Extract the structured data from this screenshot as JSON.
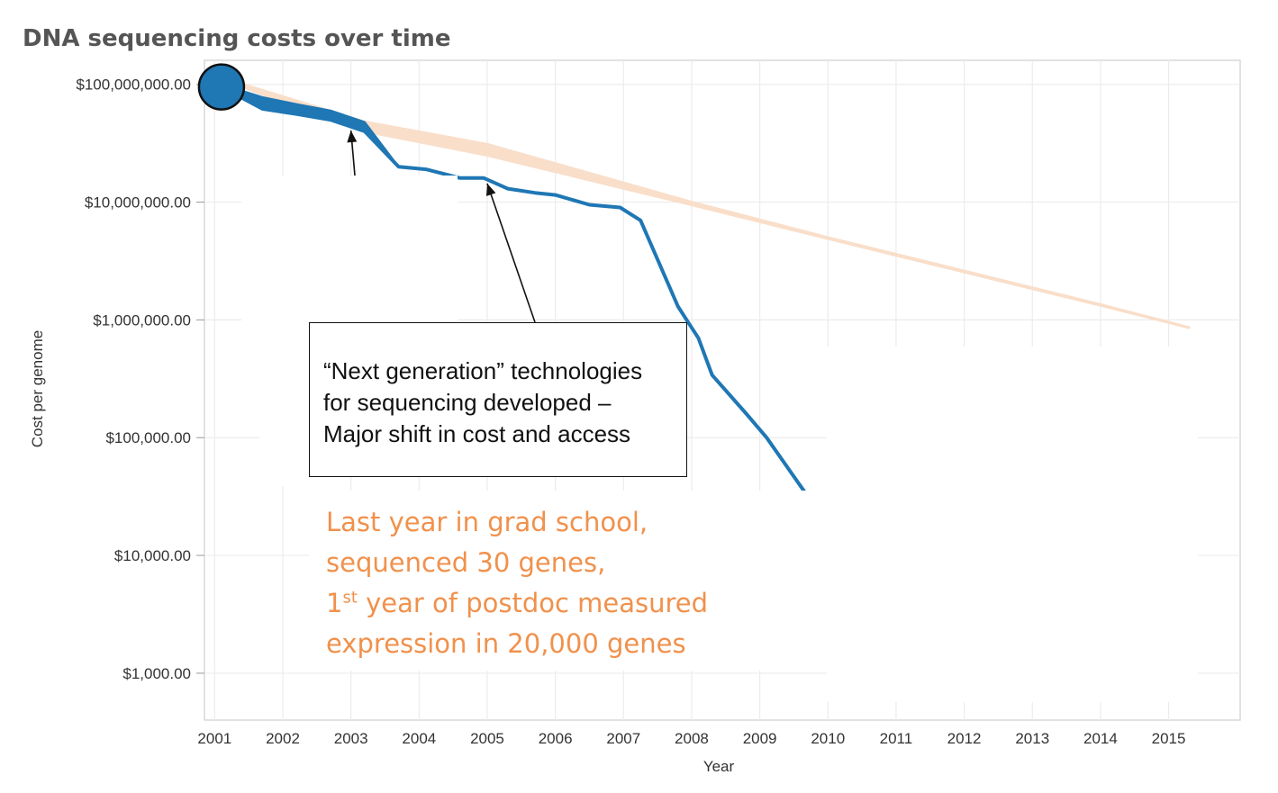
{
  "chart_data": {
    "type": "line",
    "title": "DNA sequencing costs over time",
    "xlabel": "Year",
    "ylabel": "Cost per genome",
    "yscale": "log",
    "xlim": [
      2000.85,
      2016.05
    ],
    "ylim": [
      400,
      160000000
    ],
    "x_ticks": [
      "2001",
      "2002",
      "2003",
      "2004",
      "2005",
      "2006",
      "2007",
      "2008",
      "2009",
      "2010",
      "2011",
      "2012",
      "2013",
      "2014",
      "2015"
    ],
    "y_ticks": [
      {
        "value": 100000000,
        "label": "$100,000,000.00"
      },
      {
        "value": 10000000,
        "label": "$10,000,000.00"
      },
      {
        "value": 1000000,
        "label": "$1,000,000.00"
      },
      {
        "value": 100000,
        "label": "$100,000.00"
      },
      {
        "value": 10000,
        "label": "$10,000.00"
      },
      {
        "value": 1000,
        "label": "$1,000.00"
      }
    ],
    "grid": true,
    "series": [
      {
        "color": "#1f77b4",
        "points": [
          [
            2001.1,
            95000000
          ],
          [
            2001.7,
            62000000
          ],
          [
            2002.2,
            56000000
          ],
          [
            2002.7,
            50000000
          ],
          [
            2003.2,
            40000000
          ],
          [
            2003.7,
            20000000
          ],
          [
            2004.1,
            19000000
          ],
          [
            2004.6,
            16000000
          ],
          [
            2004.95,
            16000000
          ],
          [
            2005.3,
            13000000
          ],
          [
            2005.7,
            12000000
          ],
          [
            2006.0,
            11500000
          ],
          [
            2006.5,
            9500000
          ],
          [
            2006.95,
            9000000
          ],
          [
            2007.25,
            7000000
          ],
          [
            2007.8,
            1300000
          ],
          [
            2008.1,
            700000
          ],
          [
            2008.3,
            340000
          ],
          [
            2008.8,
            160000
          ],
          [
            2009.1,
            100000
          ],
          [
            2009.7,
            32000
          ]
        ],
        "band_upper": [
          [
            2001.1,
            100000000
          ],
          [
            2001.7,
            78000000
          ],
          [
            2002.2,
            68000000
          ],
          [
            2002.7,
            60000000
          ],
          [
            2003.2,
            48000000
          ],
          [
            2003.7,
            20000000
          ],
          [
            2004.1,
            19000000
          ],
          [
            2004.6,
            16000000
          ],
          [
            2004.95,
            16000000
          ],
          [
            2005.3,
            13000000
          ],
          [
            2005.7,
            12000000
          ],
          [
            2006.0,
            11500000
          ],
          [
            2006.5,
            9500000
          ],
          [
            2006.95,
            9000000
          ],
          [
            2007.25,
            7000000
          ],
          [
            2007.8,
            1300000
          ],
          [
            2008.1,
            700000
          ],
          [
            2008.3,
            340000
          ],
          [
            2008.8,
            160000
          ],
          [
            2009.1,
            100000
          ],
          [
            2009.7,
            32000
          ]
        ]
      },
      {
        "color": "#f9dec9",
        "points": [
          [
            2001.3,
            105000000
          ],
          [
            2003.2,
            48000000
          ],
          [
            2005.0,
            31000000
          ],
          [
            2008.0,
            10000000
          ],
          [
            2010.0,
            5000000
          ],
          [
            2012.0,
            2600000
          ],
          [
            2014.0,
            1350000
          ],
          [
            2015.3,
            860000
          ]
        ],
        "band_lower": [
          [
            2001.3,
            100000000
          ],
          [
            2003.2,
            40000000
          ],
          [
            2005.0,
            25000000
          ],
          [
            2008.0,
            9500000
          ],
          [
            2010.0,
            4900000
          ],
          [
            2012.0,
            2550000
          ],
          [
            2014.0,
            1330000
          ],
          [
            2015.3,
            860000
          ]
        ]
      }
    ],
    "start_marker": {
      "x": 2001.1,
      "y": 95000000,
      "color": "#1f77b4"
    },
    "annotations": [
      {
        "lines": [
          "“Next generation” technologies",
          "for sequencing developed –",
          "Major shift in cost and access"
        ],
        "arrow_targets": [
          [
            2003.0,
            42000000
          ],
          [
            2005.0,
            16000000
          ]
        ]
      }
    ],
    "note": {
      "color": "#f0914c",
      "line1": "Last year in grad school,",
      "line2": "sequenced 30 genes,",
      "line3_num": "1",
      "line3_sup": "st",
      "line3_rest": " year of postdoc measured",
      "line4": "expression in 20,000 genes"
    }
  }
}
